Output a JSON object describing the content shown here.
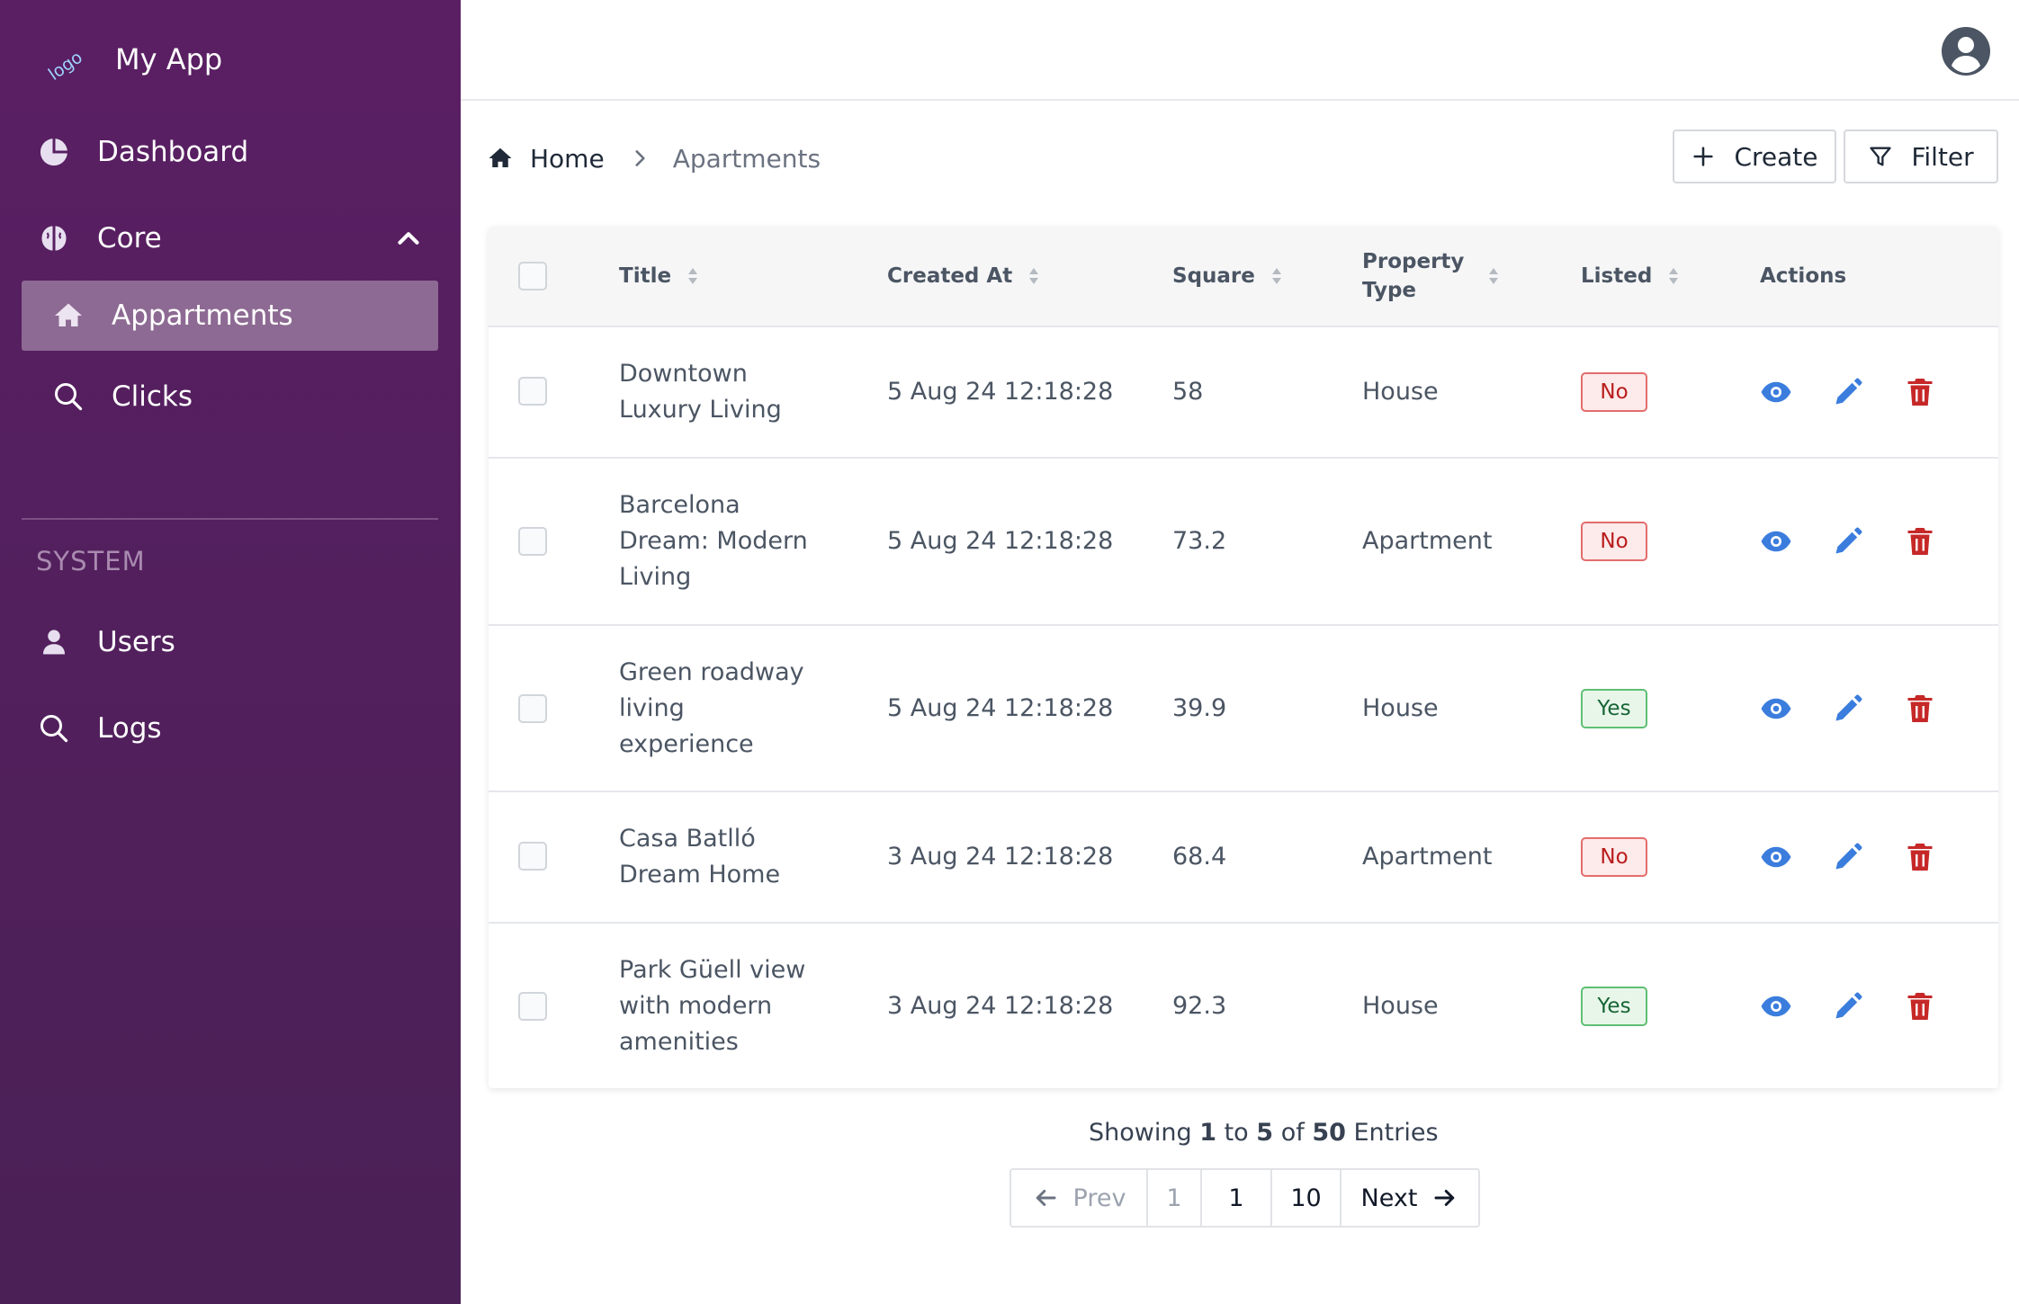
{
  "sidebar": {
    "app_name": "My App",
    "logo_text": "logo",
    "items": [
      {
        "label": "Dashboard",
        "icon": "pie-chart-icon"
      },
      {
        "label": "Core",
        "icon": "brain-icon"
      },
      {
        "label": "Appartments",
        "icon": "home-icon"
      },
      {
        "label": "Clicks",
        "icon": "search-icon"
      }
    ],
    "section": "SYSTEM",
    "system_items": [
      {
        "label": "Users",
        "icon": "user-icon"
      },
      {
        "label": "Logs",
        "icon": "search-icon"
      }
    ]
  },
  "breadcrumb": {
    "home": "Home",
    "current": "Apartments"
  },
  "toolbar": {
    "create_label": "Create",
    "filter_label": "Filter"
  },
  "table": {
    "columns": [
      "Title",
      "Created At",
      "Square",
      "Property Type",
      "Listed",
      "Actions"
    ],
    "rows": [
      {
        "title": "Downtown Luxury Living",
        "created_at": "5 Aug 24 12:18:28",
        "square": "58",
        "type": "House",
        "listed": "No"
      },
      {
        "title": "Barcelona Dream: Modern Living",
        "created_at": "5 Aug 24 12:18:28",
        "square": "73.2",
        "type": "Apartment",
        "listed": "No"
      },
      {
        "title": "Green roadway living experience",
        "created_at": "5 Aug 24 12:18:28",
        "square": "39.9",
        "type": "House",
        "listed": "Yes"
      },
      {
        "title": "Casa Batlló Dream Home",
        "created_at": "3 Aug 24 12:18:28",
        "square": "68.4",
        "type": "Apartment",
        "listed": "No"
      },
      {
        "title": "Park Güell view with modern amenities",
        "created_at": "3 Aug 24 12:18:28",
        "square": "92.3",
        "type": "House",
        "listed": "Yes"
      }
    ]
  },
  "pagination": {
    "showing_prefix": "Showing",
    "from": "1",
    "to_word": "to",
    "to": "5",
    "of_word": "of",
    "total": "50",
    "suffix": "Entries",
    "prev_label": "Prev",
    "pages": [
      "1",
      "1",
      "10"
    ],
    "next_label": "Next"
  },
  "colors": {
    "sidebar": "#5a1f63",
    "active_item": "#8d6a93",
    "accent_blue": "#3b7ddd",
    "danger": "#c62828"
  }
}
